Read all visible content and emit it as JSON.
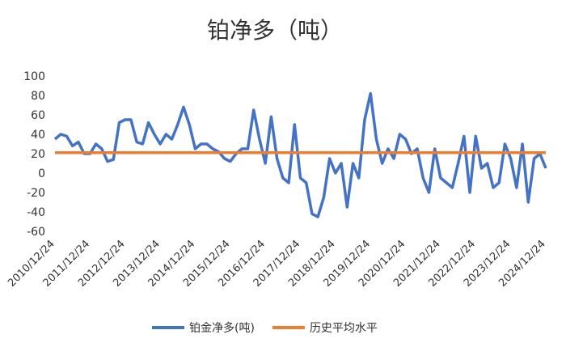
{
  "chart_data": {
    "type": "line",
    "title": "铂净多（吨）",
    "x": [
      "2010/12/24",
      "2011/02/24",
      "2011/04/24",
      "2011/06/24",
      "2011/08/24",
      "2011/10/24",
      "2011/12/24",
      "2012/02/24",
      "2012/04/24",
      "2012/06/24",
      "2012/08/24",
      "2012/10/24",
      "2012/12/24",
      "2013/02/24",
      "2013/04/24",
      "2013/06/24",
      "2013/08/24",
      "2013/10/24",
      "2013/12/24",
      "2014/02/24",
      "2014/04/24",
      "2014/06/24",
      "2014/08/24",
      "2014/10/24",
      "2014/12/24",
      "2015/02/24",
      "2015/04/24",
      "2015/06/24",
      "2015/08/24",
      "2015/10/24",
      "2015/12/24",
      "2016/02/24",
      "2016/04/24",
      "2016/06/24",
      "2016/08/24",
      "2016/10/24",
      "2016/12/24",
      "2017/02/24",
      "2017/04/24",
      "2017/06/24",
      "2017/08/24",
      "2017/10/24",
      "2017/12/24",
      "2018/02/24",
      "2018/04/24",
      "2018/06/24",
      "2018/08/24",
      "2018/10/24",
      "2018/12/24",
      "2019/02/24",
      "2019/04/24",
      "2019/06/24",
      "2019/08/24",
      "2019/10/24",
      "2019/12/24",
      "2020/02/24",
      "2020/04/24",
      "2020/06/24",
      "2020/08/24",
      "2020/10/24",
      "2020/12/24",
      "2021/02/24",
      "2021/04/24",
      "2021/06/24",
      "2021/08/24",
      "2021/10/24",
      "2021/12/24",
      "2022/02/24",
      "2022/04/24",
      "2022/06/24",
      "2022/08/24",
      "2022/10/24",
      "2022/12/24",
      "2023/02/24",
      "2023/04/24",
      "2023/06/24",
      "2023/08/24",
      "2023/10/24",
      "2023/12/24",
      "2024/02/24",
      "2024/04/24",
      "2024/06/24",
      "2024/08/24",
      "2024/10/24",
      "2024/12/24"
    ],
    "series": [
      {
        "name": "铂金净多(吨)",
        "color": "#4472c4",
        "values": [
          35,
          40,
          38,
          28,
          32,
          20,
          20,
          30,
          25,
          12,
          14,
          52,
          55,
          55,
          32,
          30,
          52,
          40,
          30,
          40,
          35,
          50,
          68,
          50,
          25,
          30,
          30,
          25,
          22,
          15,
          12,
          20,
          25,
          25,
          65,
          35,
          10,
          58,
          15,
          -5,
          -10,
          50,
          -5,
          -10,
          -42,
          -45,
          -25,
          15,
          0,
          10,
          -35,
          10,
          -5,
          55,
          82,
          35,
          10,
          25,
          15,
          40,
          35,
          20,
          25,
          -5,
          -20,
          25,
          -5,
          -10,
          -15,
          10,
          38,
          -20,
          38,
          5,
          10,
          -15,
          -10,
          30,
          15,
          -15,
          30,
          -30,
          15,
          20,
          5
        ]
      }
    ],
    "reference_line": {
      "name": "历史平均水平",
      "color": "#ed7d31",
      "value": 21
    },
    "xticks": [
      "2010/12/24",
      "2011/12/24",
      "2012/12/24",
      "2013/12/24",
      "2014/12/24",
      "2015/12/24",
      "2016/12/24",
      "2017/12/24",
      "2018/12/24",
      "2019/12/24",
      "2020/12/24",
      "2021/12/24",
      "2022/12/24",
      "2023/12/24",
      "2024/12/24"
    ],
    "ylim": [
      -60,
      100
    ],
    "yticks": [
      -60,
      -40,
      -20,
      0,
      20,
      40,
      60,
      80,
      100
    ]
  }
}
